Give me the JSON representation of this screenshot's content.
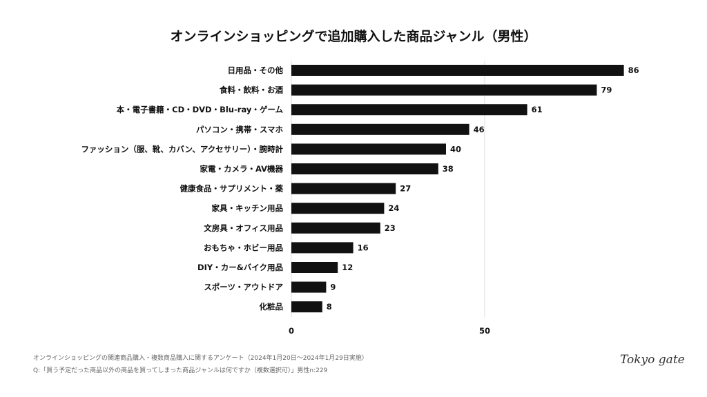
{
  "chart_data": {
    "type": "bar",
    "orientation": "horizontal",
    "title": "オンラインショッピングで追加購入した商品ジャンル（男性）",
    "categories": [
      "日用品・その他",
      "食料・飲料・お酒",
      "本・電子書籍・CD・DVD・Blu-ray・ゲーム",
      "パソコン・携帯・スマホ",
      "ファッション（服、靴、カバン、アクセサリー）・腕時計",
      "家電・カメラ・AV機器",
      "健康食品・サプリメント・薬",
      "家具・キッチン用品",
      "文房具・オフィス用品",
      "おもちゃ・ホビー用品",
      "DIY・カー&バイク用品",
      "スポーツ・アウトドア",
      "化粧品"
    ],
    "values": [
      86,
      79,
      61,
      46,
      40,
      38,
      27,
      24,
      23,
      16,
      12,
      9,
      8
    ],
    "xticks": [
      "0",
      "50"
    ],
    "xlim": [
      0,
      100
    ],
    "bar_color": "#111111",
    "grid": "vertical line at 50"
  },
  "notes": {
    "line1": "オンラインショッピングの関連商品購入・複数商品購入に関するアンケート（2024年1月20日〜2024年1月29日実施）",
    "line2": "Q:「買う予定だった商品以外の商品を買ってしまった商品ジャンルは何ですか（複数選択可）」男性n:229"
  },
  "logo": "Tokyo gate"
}
